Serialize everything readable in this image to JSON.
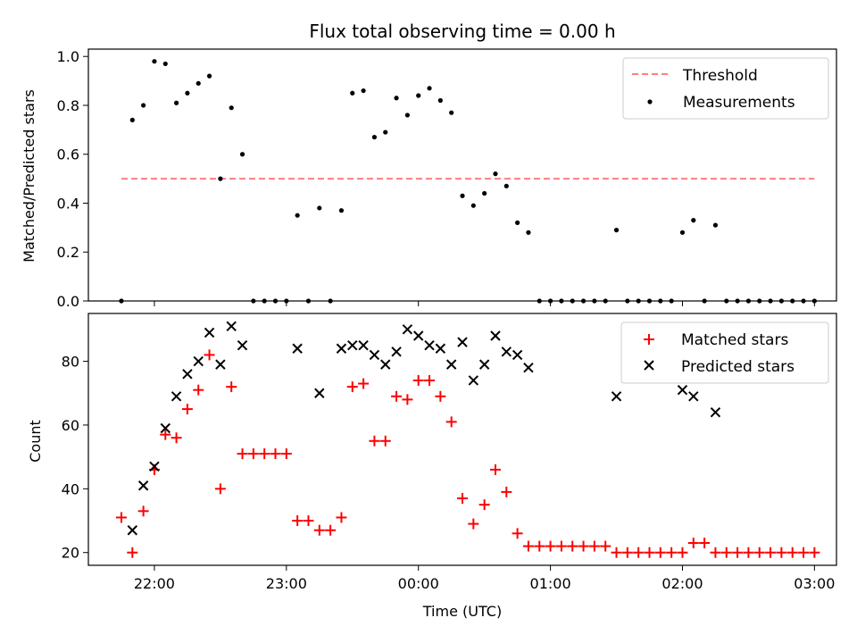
{
  "chart_data": [
    {
      "type": "scatter",
      "title": "Flux total observing time = 0.00 h",
      "ylabel": "Matched/Predicted stars",
      "xlabel": "",
      "xlim": [
        "21:30",
        "03:10"
      ],
      "ylim": [
        0,
        1.03
      ],
      "yticks": [
        0.0,
        0.2,
        0.4,
        0.6,
        0.8,
        1.0
      ],
      "ytick_labels": [
        "0.0",
        "0.2",
        "0.4",
        "0.6",
        "0.8",
        "1.0"
      ],
      "legend_position": "top-right",
      "threshold": {
        "name": "Threshold",
        "value": 0.5,
        "x_start": "21:45",
        "x_end": "03:00",
        "color": "#ff7f7f"
      },
      "series": [
        {
          "name": "Measurements",
          "color": "#000000",
          "x": [
            "21:45",
            "21:50",
            "21:55",
            "22:00",
            "22:05",
            "22:10",
            "22:15",
            "22:20",
            "22:25",
            "22:30",
            "22:35",
            "22:40",
            "22:45",
            "22:50",
            "22:55",
            "23:00",
            "23:05",
            "23:10",
            "23:15",
            "23:20",
            "23:25",
            "23:30",
            "23:35",
            "23:40",
            "23:45",
            "23:50",
            "23:55",
            "00:00",
            "00:05",
            "00:10",
            "00:15",
            "00:20",
            "00:25",
            "00:30",
            "00:35",
            "00:40",
            "00:45",
            "00:50",
            "00:55",
            "01:00",
            "01:05",
            "01:10",
            "01:15",
            "01:20",
            "01:25",
            "01:30",
            "01:35",
            "01:40",
            "01:45",
            "01:50",
            "01:55",
            "02:00",
            "02:05",
            "02:10",
            "02:15",
            "02:20",
            "02:25",
            "02:30",
            "02:35",
            "02:40",
            "02:45",
            "02:50",
            "02:55",
            "03:00"
          ],
          "y": [
            0.0,
            0.74,
            0.8,
            0.98,
            0.97,
            0.81,
            0.85,
            0.89,
            0.92,
            0.5,
            0.79,
            0.6,
            0.0,
            0.0,
            0.0,
            0.0,
            0.35,
            0.0,
            0.38,
            0.0,
            0.37,
            0.85,
            0.86,
            0.67,
            0.69,
            0.83,
            0.76,
            0.84,
            0.87,
            0.82,
            0.77,
            0.43,
            0.39,
            0.44,
            0.52,
            0.47,
            0.32,
            0.28,
            0.0,
            0.0,
            0.0,
            0.0,
            0.0,
            0.0,
            0.0,
            0.29,
            0.0,
            0.0,
            0.0,
            0.0,
            0.0,
            0.28,
            0.33,
            0.0,
            0.31,
            0.0,
            0.0,
            0.0,
            0.0,
            0.0,
            0.0,
            0.0,
            0.0,
            0.0
          ]
        }
      ]
    },
    {
      "type": "scatter",
      "title": "",
      "ylabel": "Count",
      "xlabel": "Time (UTC)",
      "xlim": [
        "21:30",
        "03:10"
      ],
      "xticks": [
        "22:00",
        "23:00",
        "00:00",
        "01:00",
        "02:00",
        "03:00"
      ],
      "ylim": [
        16,
        95
      ],
      "yticks": [
        20,
        40,
        60,
        80
      ],
      "ytick_labels": [
        "20",
        "40",
        "60",
        "80"
      ],
      "legend_position": "top-right",
      "series": [
        {
          "name": "Matched stars",
          "marker": "plus",
          "color": "#ff0000",
          "x": [
            "21:45",
            "21:50",
            "21:55",
            "22:00",
            "22:05",
            "22:10",
            "22:15",
            "22:20",
            "22:25",
            "22:30",
            "22:35",
            "22:40",
            "22:45",
            "22:50",
            "22:55",
            "23:00",
            "23:05",
            "23:10",
            "23:15",
            "23:20",
            "23:25",
            "23:30",
            "23:35",
            "23:40",
            "23:45",
            "23:50",
            "23:55",
            "00:00",
            "00:05",
            "00:10",
            "00:15",
            "00:20",
            "00:25",
            "00:30",
            "00:35",
            "00:40",
            "00:45",
            "00:50",
            "00:55",
            "01:00",
            "01:05",
            "01:10",
            "01:15",
            "01:20",
            "01:25",
            "01:30",
            "01:35",
            "01:40",
            "01:45",
            "01:50",
            "01:55",
            "02:00",
            "02:05",
            "02:10",
            "02:15",
            "02:20",
            "02:25",
            "02:30",
            "02:35",
            "02:40",
            "02:45",
            "02:50",
            "02:55",
            "03:00"
          ],
          "y": [
            31,
            20,
            33,
            46,
            57,
            56,
            65,
            71,
            82,
            40,
            72,
            51,
            51,
            51,
            51,
            51,
            30,
            30,
            27,
            27,
            31,
            72,
            73,
            55,
            55,
            69,
            68,
            74,
            74,
            69,
            61,
            37,
            29,
            35,
            46,
            39,
            26,
            22,
            22,
            22,
            22,
            22,
            22,
            22,
            22,
            20,
            20,
            20,
            20,
            20,
            20,
            20,
            23,
            23,
            20,
            20,
            20,
            20,
            20,
            20,
            20,
            20,
            20,
            20
          ]
        },
        {
          "name": "Predicted stars",
          "marker": "x",
          "color": "#000000",
          "x": [
            "21:50",
            "21:55",
            "22:00",
            "22:05",
            "22:10",
            "22:15",
            "22:20",
            "22:25",
            "22:30",
            "22:35",
            "22:40",
            "23:05",
            "23:15",
            "23:25",
            "23:30",
            "23:35",
            "23:40",
            "23:45",
            "23:50",
            "23:55",
            "00:00",
            "00:05",
            "00:10",
            "00:15",
            "00:20",
            "00:25",
            "00:30",
            "00:35",
            "00:40",
            "00:45",
            "00:50",
            "00:55",
            "01:30",
            "02:00",
            "02:05",
            "02:15"
          ],
          "y": [
            27,
            41,
            47,
            59,
            69,
            76,
            80,
            89,
            79,
            91,
            85,
            84,
            70,
            84,
            85,
            85,
            82,
            79,
            83,
            90,
            88,
            85,
            84,
            79,
            86,
            74,
            79,
            88,
            83,
            82,
            78,
            null,
            69,
            71,
            69,
            64
          ]
        }
      ]
    }
  ]
}
